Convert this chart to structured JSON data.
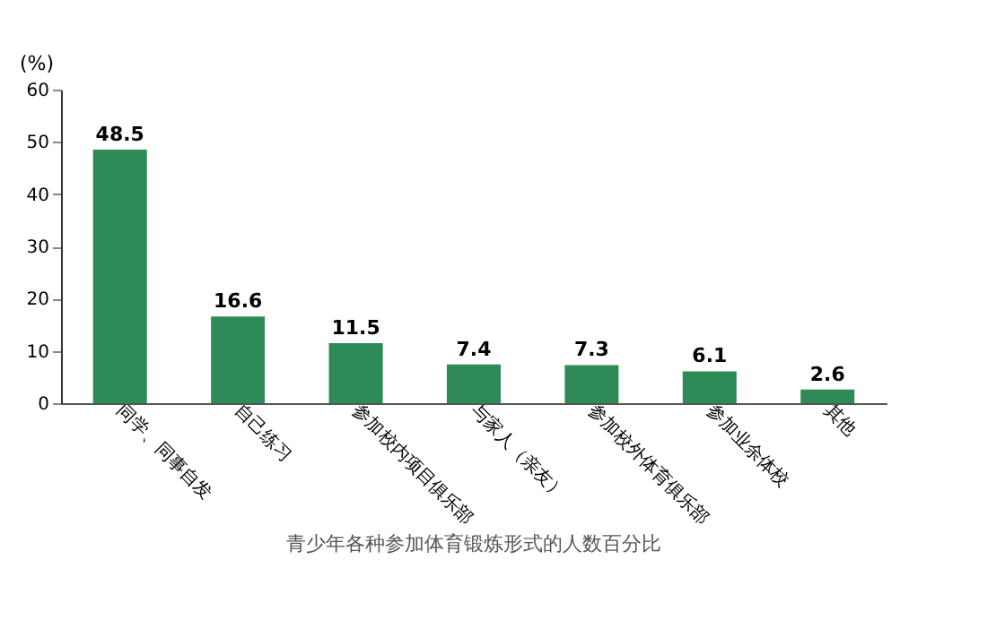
{
  "chart_data": {
    "type": "bar",
    "ylabel": "(%)",
    "categories": [
      "同学、同事自发",
      "自己练习",
      "参加校内项目俱乐部",
      "与家人（亲友）",
      "参加校外体育俱乐部",
      "参加业余体校",
      "其他"
    ],
    "values": [
      48.5,
      16.6,
      11.5,
      7.4,
      7.3,
      6.1,
      2.6
    ],
    "color": "#2e8b57",
    "data_labels": true,
    "ylim": [
      0,
      60
    ],
    "yticks": [
      0,
      10,
      20,
      30,
      40,
      50,
      60
    ],
    "grid": false,
    "annotations": [
      "青少年各种参加体育锻炼形式的人数百分比"
    ]
  }
}
